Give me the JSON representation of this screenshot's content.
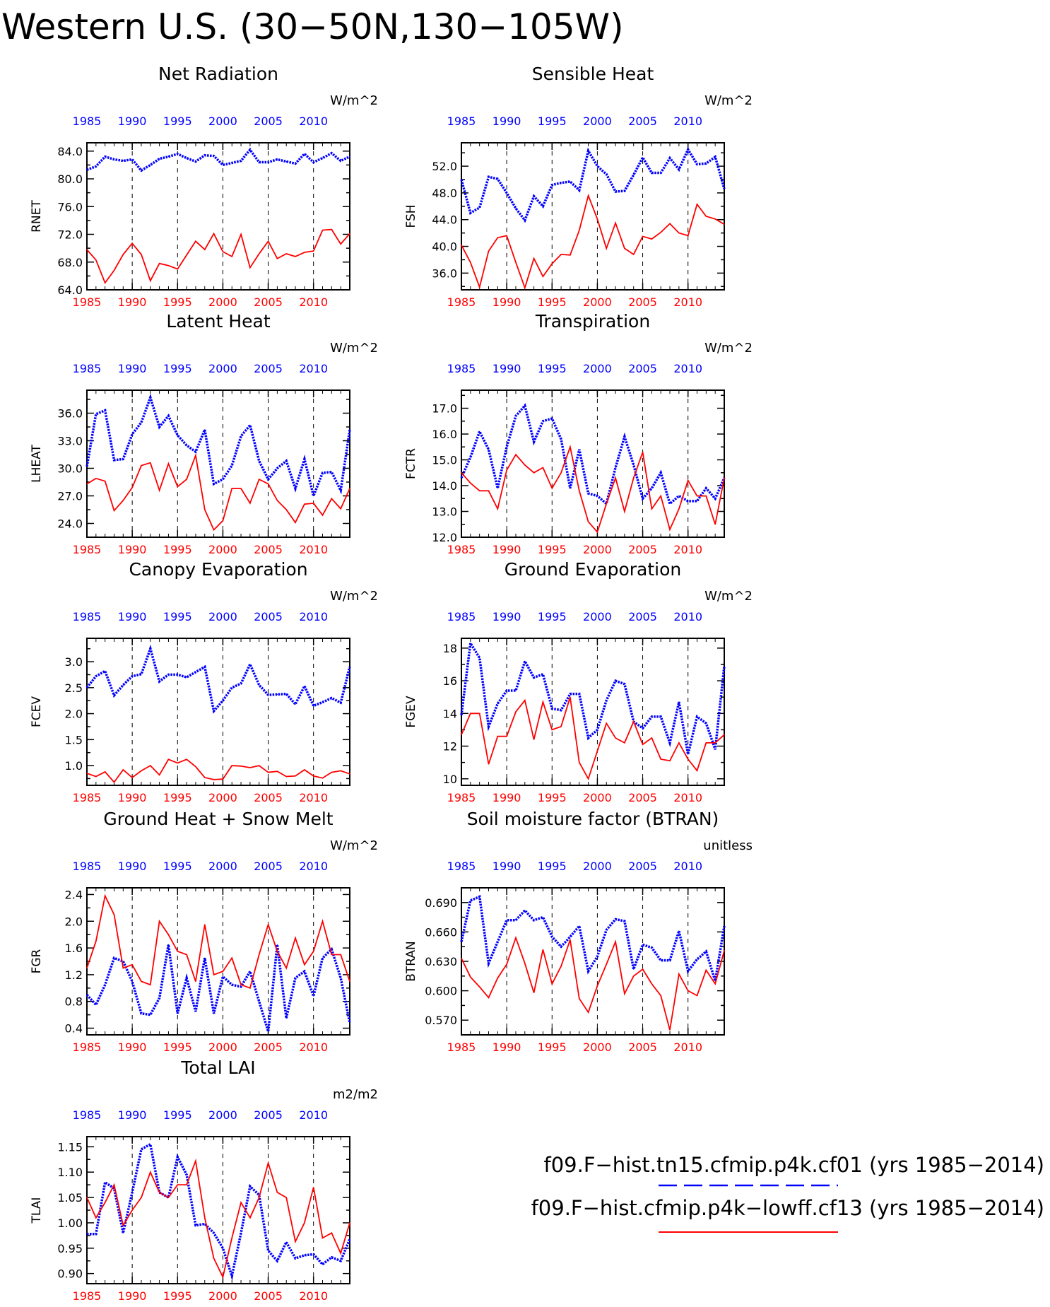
{
  "title": "Western U.S. (30−50N,130−105W)",
  "colors": {
    "case1": "#0000ff",
    "case2": "#ff0000",
    "axis": "#000000"
  },
  "legend": {
    "placement": "bottom-right",
    "entries": [
      {
        "label": "f09.F−hist.tn15.cfmip.p4k.cf01 (yrs 1985−2014)",
        "color": "#0000ff",
        "style": "dashed"
      },
      {
        "label": "f09.F−hist.cfmip.p4k−lowff.cf13 (yrs 1985−2014)",
        "color": "#ff0000",
        "style": "solid"
      }
    ]
  },
  "chart_data": [
    {
      "type": "line",
      "title": "Net Radiation",
      "ylabel": "RNET",
      "units": "W/m^2",
      "ylim": [
        64,
        85.2
      ],
      "yticks": [
        64,
        68,
        72,
        76,
        80,
        84
      ],
      "ydecimals": 1,
      "xlim": [
        1985,
        2014
      ],
      "xticks": [
        1985,
        1990,
        1995,
        2000,
        2005,
        2010
      ],
      "x": [
        1985,
        1986,
        1987,
        1988,
        1989,
        1990,
        1991,
        1992,
        1993,
        1994,
        1995,
        1996,
        1997,
        1998,
        1999,
        2000,
        2001,
        2002,
        2003,
        2004,
        2005,
        2006,
        2007,
        2008,
        2009,
        2010,
        2011,
        2012,
        2013,
        2014
      ],
      "series": [
        {
          "values": [
            81.3,
            81.8,
            83.2,
            82.8,
            82.6,
            82.8,
            81.2,
            82.0,
            82.9,
            83.2,
            83.6,
            83.0,
            82.5,
            83.4,
            83.3,
            82.0,
            82.3,
            82.6,
            84.2,
            82.4,
            82.4,
            82.8,
            82.5,
            82.2,
            83.6,
            82.4,
            83.0,
            83.7,
            82.6,
            83.2
          ]
        },
        {
          "values": [
            69.8,
            68.3,
            65.0,
            66.8,
            69.1,
            70.7,
            69.1,
            65.3,
            67.8,
            67.5,
            67.0,
            69.0,
            71.0,
            69.8,
            72.1,
            69.5,
            68.8,
            72.0,
            67.2,
            69.2,
            71.0,
            68.5,
            69.2,
            68.8,
            69.4,
            69.6,
            72.6,
            72.7,
            70.6,
            72.1
          ]
        }
      ]
    },
    {
      "type": "line",
      "title": "Sensible Heat",
      "ylabel": "FSH",
      "units": "W/m^2",
      "ylim": [
        33.5,
        55.5
      ],
      "yticks": [
        36,
        40,
        44,
        48,
        52
      ],
      "ydecimals": 1,
      "xlim": [
        1985,
        2014
      ],
      "xticks": [
        1985,
        1990,
        1995,
        2000,
        2005,
        2010
      ],
      "x": [
        1985,
        1986,
        1987,
        1988,
        1989,
        1990,
        1991,
        1992,
        1993,
        1994,
        1995,
        1996,
        1997,
        1998,
        1999,
        2000,
        2001,
        2002,
        2003,
        2004,
        2005,
        2006,
        2007,
        2008,
        2009,
        2010,
        2011,
        2012,
        2013,
        2014
      ],
      "series": [
        {
          "values": [
            50.0,
            45.0,
            45.8,
            50.4,
            50.1,
            48.0,
            45.7,
            43.9,
            47.5,
            46.0,
            49.2,
            49.5,
            49.7,
            48.4,
            54.3,
            52.0,
            50.8,
            48.2,
            48.3,
            50.7,
            53.3,
            51.0,
            51.0,
            53.2,
            51.5,
            54.5,
            52.3,
            52.4,
            53.4,
            48.6
          ]
        },
        {
          "values": [
            40.2,
            37.6,
            33.9,
            39.3,
            41.3,
            41.6,
            37.6,
            33.8,
            38.2,
            35.5,
            37.4,
            38.8,
            38.7,
            42.4,
            47.6,
            44.1,
            39.7,
            43.5,
            39.7,
            38.8,
            41.5,
            41.1,
            42.1,
            43.4,
            42.0,
            41.6,
            46.3,
            44.5,
            44.1,
            43.3
          ]
        }
      ]
    },
    {
      "type": "line",
      "title": "Latent Heat",
      "ylabel": "LHEAT",
      "units": "W/m^2",
      "ylim": [
        22.5,
        38.5
      ],
      "yticks": [
        24,
        27,
        30,
        33,
        36
      ],
      "ydecimals": 1,
      "xlim": [
        1985,
        2014
      ],
      "xticks": [
        1985,
        1990,
        1995,
        2000,
        2005,
        2010
      ],
      "x": [
        1985,
        1986,
        1987,
        1988,
        1989,
        1990,
        1991,
        1992,
        1993,
        1994,
        1995,
        1996,
        1997,
        1998,
        1999,
        2000,
        2001,
        2002,
        2003,
        2004,
        2005,
        2006,
        2007,
        2008,
        2009,
        2010,
        2011,
        2012,
        2013,
        2014
      ],
      "series": [
        {
          "values": [
            30.2,
            35.9,
            36.3,
            30.9,
            31.0,
            33.7,
            35.0,
            37.7,
            34.5,
            35.7,
            33.6,
            32.5,
            31.8,
            34.2,
            28.3,
            28.8,
            30.3,
            33.5,
            34.7,
            30.8,
            28.8,
            30.0,
            30.8,
            27.8,
            31.0,
            27.0,
            29.5,
            29.6,
            27.6,
            34.2
          ]
        },
        {
          "values": [
            28.3,
            28.9,
            28.6,
            25.4,
            26.5,
            27.9,
            30.3,
            30.6,
            27.6,
            30.5,
            28.0,
            28.8,
            31.4,
            25.5,
            23.3,
            24.3,
            27.8,
            27.8,
            26.2,
            28.8,
            28.3,
            26.5,
            25.5,
            24.1,
            26.1,
            26.2,
            24.9,
            26.7,
            25.6,
            27.8
          ]
        }
      ]
    },
    {
      "type": "line",
      "title": "Transpiration",
      "ylabel": "FCTR",
      "units": "W/m^2",
      "ylim": [
        12,
        17.7
      ],
      "yticks": [
        12,
        13,
        14,
        15,
        16,
        17
      ],
      "ydecimals": 1,
      "xlim": [
        1985,
        2014
      ],
      "xticks": [
        1985,
        1990,
        1995,
        2000,
        2005,
        2010
      ],
      "x": [
        1985,
        1986,
        1987,
        1988,
        1989,
        1990,
        1991,
        1992,
        1993,
        1994,
        1995,
        1996,
        1997,
        1998,
        1999,
        2000,
        2001,
        2002,
        2003,
        2004,
        2005,
        2006,
        2007,
        2008,
        2009,
        2010,
        2011,
        2012,
        2013,
        2014
      ],
      "series": [
        {
          "values": [
            14.3,
            15.1,
            16.1,
            15.4,
            13.9,
            15.5,
            16.7,
            17.1,
            15.7,
            16.5,
            16.6,
            15.8,
            13.9,
            15.4,
            13.7,
            13.6,
            13.3,
            14.7,
            15.9,
            14.8,
            13.5,
            13.9,
            14.5,
            13.3,
            13.6,
            13.4,
            13.4,
            13.9,
            13.5,
            14.3
          ]
        },
        {
          "values": [
            14.5,
            14.1,
            13.8,
            13.8,
            13.1,
            14.6,
            15.2,
            14.8,
            14.5,
            14.7,
            13.9,
            14.5,
            15.5,
            13.8,
            12.6,
            12.2,
            13.3,
            14.3,
            13.0,
            14.3,
            15.3,
            13.1,
            13.6,
            12.3,
            13.1,
            14.2,
            13.6,
            13.6,
            12.5,
            14.3
          ]
        }
      ]
    },
    {
      "type": "line",
      "title": "Canopy Evaporation",
      "ylabel": "FCEV",
      "units": "W/m^2",
      "ylim": [
        0.62,
        3.45
      ],
      "yticks": [
        1.0,
        1.5,
        2.0,
        2.5,
        3.0
      ],
      "ydecimals": 1,
      "xlim": [
        1985,
        2014
      ],
      "xticks": [
        1985,
        1990,
        1995,
        2000,
        2005,
        2010
      ],
      "x": [
        1985,
        1986,
        1987,
        1988,
        1989,
        1990,
        1991,
        1992,
        1993,
        1994,
        1995,
        1996,
        1997,
        1998,
        1999,
        2000,
        2001,
        2002,
        2003,
        2004,
        2005,
        2006,
        2007,
        2008,
        2009,
        2010,
        2011,
        2012,
        2013,
        2014
      ],
      "series": [
        {
          "values": [
            2.5,
            2.72,
            2.82,
            2.35,
            2.55,
            2.72,
            2.76,
            3.25,
            2.62,
            2.75,
            2.75,
            2.7,
            2.8,
            2.9,
            2.05,
            2.25,
            2.5,
            2.58,
            2.95,
            2.55,
            2.36,
            2.37,
            2.38,
            2.18,
            2.53,
            2.15,
            2.22,
            2.3,
            2.21,
            2.9
          ]
        },
        {
          "values": [
            0.85,
            0.79,
            0.88,
            0.68,
            0.92,
            0.77,
            0.9,
            1.0,
            0.82,
            1.12,
            1.05,
            1.12,
            0.98,
            0.77,
            0.73,
            0.74,
            1.0,
            0.99,
            0.96,
            1.0,
            0.87,
            0.89,
            0.79,
            0.8,
            0.92,
            0.8,
            0.76,
            0.87,
            0.9,
            0.84
          ]
        }
      ]
    },
    {
      "type": "line",
      "title": "Ground Evaporation",
      "ylabel": "FGEV",
      "units": "W/m^2",
      "ylim": [
        9.6,
        18.6
      ],
      "yticks": [
        10,
        12,
        14,
        16,
        18
      ],
      "ydecimals": 0,
      "xlim": [
        1985,
        2014
      ],
      "xticks": [
        1985,
        1990,
        1995,
        2000,
        2005,
        2010
      ],
      "x": [
        1985,
        1986,
        1987,
        1988,
        1989,
        1990,
        1991,
        1992,
        1993,
        1994,
        1995,
        1996,
        1997,
        1998,
        1999,
        2000,
        2001,
        2002,
        2003,
        2004,
        2005,
        2006,
        2007,
        2008,
        2009,
        2010,
        2011,
        2012,
        2013,
        2014
      ],
      "series": [
        {
          "values": [
            13.9,
            18.3,
            17.4,
            13.2,
            14.6,
            15.4,
            15.4,
            17.2,
            16.2,
            16.4,
            14.3,
            14.2,
            15.2,
            15.2,
            12.5,
            13.0,
            14.8,
            16.0,
            15.8,
            13.5,
            13.1,
            13.8,
            13.8,
            12.2,
            14.7,
            11.5,
            13.8,
            13.4,
            11.8,
            16.9
          ]
        },
        {
          "values": [
            12.7,
            14.0,
            14.0,
            10.9,
            12.6,
            12.6,
            14.1,
            14.8,
            12.4,
            14.7,
            13.0,
            13.2,
            15.0,
            11.0,
            10.0,
            11.7,
            13.4,
            12.5,
            12.2,
            13.5,
            12.1,
            12.5,
            11.2,
            11.1,
            12.2,
            11.2,
            10.5,
            12.2,
            12.2,
            12.7
          ]
        }
      ]
    },
    {
      "type": "line",
      "title": "Ground Heat + Snow Melt",
      "ylabel": "FGR",
      "units": "W/m^2",
      "ylim": [
        0.3,
        2.5
      ],
      "yticks": [
        0.4,
        0.8,
        1.2,
        1.6,
        2.0,
        2.4
      ],
      "ydecimals": 1,
      "xlim": [
        1985,
        2014
      ],
      "xticks": [
        1985,
        1990,
        1995,
        2000,
        2005,
        2010
      ],
      "x": [
        1985,
        1986,
        1987,
        1988,
        1989,
        1990,
        1991,
        1992,
        1993,
        1994,
        1995,
        1996,
        1997,
        1998,
        1999,
        2000,
        2001,
        2002,
        2003,
        2004,
        2005,
        2006,
        2007,
        2008,
        2009,
        2010,
        2011,
        2012,
        2013,
        2014
      ],
      "series": [
        {
          "values": [
            0.9,
            0.75,
            1.05,
            1.45,
            1.4,
            1.1,
            0.62,
            0.6,
            0.85,
            1.65,
            0.62,
            1.15,
            0.65,
            1.45,
            0.62,
            1.17,
            1.05,
            1.02,
            1.25,
            0.8,
            0.35,
            1.65,
            0.55,
            1.15,
            1.25,
            0.88,
            1.45,
            1.58,
            1.15,
            0.48
          ]
        },
        {
          "values": [
            1.3,
            1.7,
            2.38,
            2.1,
            1.3,
            1.35,
            1.1,
            1.05,
            2.0,
            1.8,
            1.55,
            1.5,
            1.1,
            1.95,
            1.2,
            1.25,
            1.45,
            1.05,
            1.0,
            1.5,
            1.95,
            1.55,
            1.3,
            1.75,
            1.35,
            1.55,
            2.0,
            1.5,
            1.5,
            1.1
          ]
        }
      ]
    },
    {
      "type": "line",
      "title": "Soil moisture factor (BTRAN)",
      "ylabel": "BTRAN",
      "units": "unitless",
      "ylim": [
        0.555,
        0.705
      ],
      "yticks": [
        0.57,
        0.6,
        0.63,
        0.66,
        0.69
      ],
      "ydecimals": 3,
      "xlim": [
        1985,
        2014
      ],
      "xticks": [
        1985,
        1990,
        1995,
        2000,
        2005,
        2010
      ],
      "x": [
        1985,
        1986,
        1987,
        1988,
        1989,
        1990,
        1991,
        1992,
        1993,
        1994,
        1995,
        1996,
        1997,
        1998,
        1999,
        2000,
        2001,
        2002,
        2003,
        2004,
        2005,
        2006,
        2007,
        2008,
        2009,
        2010,
        2011,
        2012,
        2013,
        2014
      ],
      "series": [
        {
          "values": [
            0.65,
            0.692,
            0.696,
            0.628,
            0.65,
            0.672,
            0.672,
            0.682,
            0.672,
            0.675,
            0.655,
            0.645,
            0.655,
            0.666,
            0.62,
            0.635,
            0.662,
            0.673,
            0.671,
            0.622,
            0.647,
            0.644,
            0.631,
            0.631,
            0.661,
            0.62,
            0.632,
            0.64,
            0.61,
            0.666
          ]
        },
        {
          "values": [
            0.633,
            0.614,
            0.604,
            0.593,
            0.613,
            0.627,
            0.654,
            0.628,
            0.598,
            0.642,
            0.607,
            0.625,
            0.652,
            0.592,
            0.578,
            0.605,
            0.627,
            0.65,
            0.597,
            0.615,
            0.622,
            0.607,
            0.595,
            0.56,
            0.617,
            0.6,
            0.595,
            0.621,
            0.607,
            0.641
          ]
        }
      ]
    },
    {
      "type": "line",
      "title": "Total LAI",
      "ylabel": "TLAI",
      "units": "m2/m2",
      "ylim": [
        0.88,
        1.17
      ],
      "yticks": [
        0.9,
        0.95,
        1.0,
        1.05,
        1.1,
        1.15
      ],
      "ydecimals": 2,
      "xlim": [
        1985,
        2014
      ],
      "xticks": [
        1985,
        1990,
        1995,
        2000,
        2005,
        2010
      ],
      "x": [
        1985,
        1986,
        1987,
        1988,
        1989,
        1990,
        1991,
        1992,
        1993,
        1994,
        1995,
        1996,
        1997,
        1998,
        1999,
        2000,
        2001,
        2002,
        2003,
        2004,
        2005,
        2006,
        2007,
        2008,
        2009,
        2010,
        2011,
        2012,
        2013,
        2014
      ],
      "series": [
        {
          "values": [
            0.978,
            0.978,
            1.08,
            1.068,
            0.98,
            1.06,
            1.145,
            1.155,
            1.06,
            1.05,
            1.13,
            1.095,
            0.995,
            0.998,
            0.98,
            0.95,
            0.895,
            0.98,
            1.072,
            1.055,
            0.945,
            0.925,
            0.962,
            0.93,
            0.936,
            0.938,
            0.918,
            0.932,
            0.925,
            0.968
          ]
        },
        {
          "values": [
            1.05,
            1.01,
            1.04,
            1.075,
            0.995,
            1.025,
            1.05,
            1.1,
            1.06,
            1.05,
            1.075,
            1.075,
            1.122,
            1.01,
            0.93,
            0.893,
            0.97,
            1.04,
            1.01,
            1.05,
            1.118,
            1.06,
            1.05,
            0.963,
            1.0,
            1.07,
            0.97,
            0.98,
            0.94,
            1.0
          ]
        }
      ]
    }
  ]
}
